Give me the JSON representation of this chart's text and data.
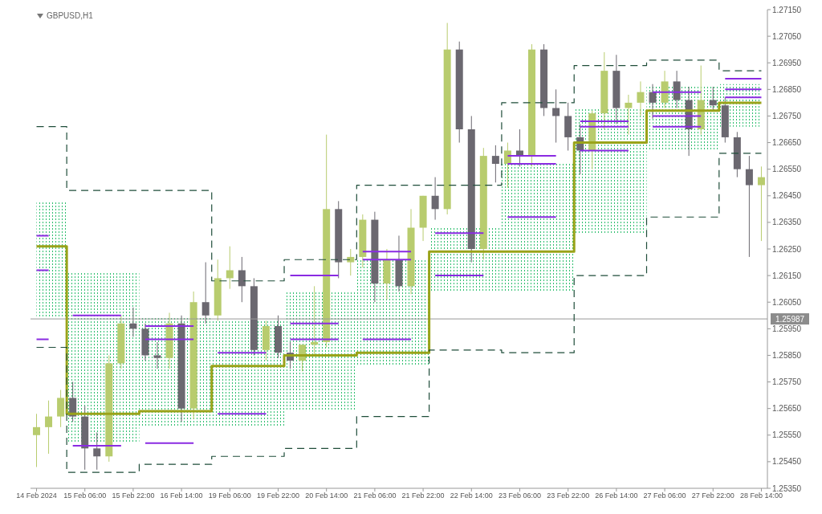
{
  "chart_data": {
    "type": "candlestick",
    "title": "GBPUSD,H1",
    "categories": [
      "14 Feb 2024",
      null,
      null,
      null,
      "15 Feb 06:00",
      null,
      null,
      null,
      "15 Feb 22:00",
      null,
      null,
      null,
      "16 Feb 14:00",
      null,
      null,
      null,
      "19 Feb 06:00",
      null,
      null,
      null,
      "19 Feb 22:00",
      null,
      null,
      null,
      "20 Feb 14:00",
      null,
      null,
      null,
      "21 Feb 06:00",
      null,
      null,
      null,
      "21 Feb 22:00",
      null,
      null,
      null,
      "22 Feb 14:00",
      null,
      null,
      null,
      "23 Feb 06:00",
      null,
      null,
      null,
      "23 Feb 22:00",
      null,
      null,
      null,
      "26 Feb 14:00",
      null,
      null,
      null,
      "27 Feb 06:00",
      null,
      null,
      null,
      "27 Feb 22:00",
      null,
      null,
      null,
      "28 Feb 14:00"
    ],
    "ohlc": [
      [
        1.2555,
        1.2563,
        1.2543,
        1.2558
      ],
      [
        1.2558,
        1.2568,
        1.2548,
        1.2562
      ],
      [
        1.2562,
        1.2572,
        1.2558,
        1.2569
      ],
      [
        1.2569,
        1.2575,
        1.256,
        1.2562
      ],
      [
        1.2562,
        1.2566,
        1.2542,
        1.255
      ],
      [
        1.255,
        1.2556,
        1.2542,
        1.2547
      ],
      [
        1.2547,
        1.2585,
        1.2545,
        1.2582
      ],
      [
        1.2582,
        1.26,
        1.258,
        1.2597
      ],
      [
        1.2597,
        1.2603,
        1.2592,
        1.2595
      ],
      [
        1.2595,
        1.2597,
        1.2583,
        1.2585
      ],
      [
        1.2585,
        1.259,
        1.258,
        1.2584
      ],
      [
        1.2584,
        1.2601,
        1.258,
        1.2597
      ],
      [
        1.2597,
        1.26,
        1.256,
        1.2565
      ],
      [
        1.2565,
        1.2609,
        1.2561,
        1.2605
      ],
      [
        1.2605,
        1.262,
        1.2597,
        1.26
      ],
      [
        1.26,
        1.2621,
        1.2598,
        1.2614
      ],
      [
        1.2614,
        1.2626,
        1.261,
        1.2617
      ],
      [
        1.2617,
        1.2622,
        1.2605,
        1.2611
      ],
      [
        1.2611,
        1.2614,
        1.2585,
        1.2587
      ],
      [
        1.2587,
        1.2598,
        1.2583,
        1.2596
      ],
      [
        1.2596,
        1.26,
        1.2584,
        1.2586
      ],
      [
        1.2586,
        1.259,
        1.258,
        1.2583
      ],
      [
        1.2583,
        1.2589,
        1.2579,
        1.2589
      ],
      [
        1.2589,
        1.2611,
        1.2585,
        1.259
      ],
      [
        1.259,
        1.2668,
        1.2588,
        1.264
      ],
      [
        1.264,
        1.2643,
        1.2614,
        1.262
      ],
      [
        1.262,
        1.2625,
        1.2615,
        1.2622
      ],
      [
        1.2622,
        1.2638,
        1.2618,
        1.2636
      ],
      [
        1.2636,
        1.2639,
        1.2605,
        1.2612
      ],
      [
        1.2612,
        1.2625,
        1.2606,
        1.2621
      ],
      [
        1.2621,
        1.263,
        1.2609,
        1.2611
      ],
      [
        1.2611,
        1.264,
        1.2608,
        1.2633
      ],
      [
        1.2633,
        1.2645,
        1.2628,
        1.2645
      ],
      [
        1.2645,
        1.2652,
        1.2636,
        1.264
      ],
      [
        1.264,
        1.271,
        1.2638,
        1.27
      ],
      [
        1.27,
        1.2703,
        1.2665,
        1.267
      ],
      [
        1.267,
        1.2675,
        1.262,
        1.2625
      ],
      [
        1.2625,
        1.2663,
        1.2621,
        1.266
      ],
      [
        1.266,
        1.2664,
        1.265,
        1.2657
      ],
      [
        1.2657,
        1.2665,
        1.2648,
        1.2662
      ],
      [
        1.2662,
        1.267,
        1.2656,
        1.266
      ],
      [
        1.266,
        1.2702,
        1.2656,
        1.27
      ],
      [
        1.27,
        1.2702,
        1.2675,
        1.2678
      ],
      [
        1.2678,
        1.2685,
        1.2665,
        1.2675
      ],
      [
        1.2675,
        1.268,
        1.2662,
        1.2667
      ],
      [
        1.2667,
        1.2672,
        1.2653,
        1.2662
      ],
      [
        1.2662,
        1.2677,
        1.2655,
        1.2676
      ],
      [
        1.2676,
        1.2699,
        1.267,
        1.2692
      ],
      [
        1.2692,
        1.2698,
        1.2672,
        1.2678
      ],
      [
        1.2678,
        1.2683,
        1.2668,
        1.268
      ],
      [
        1.268,
        1.2688,
        1.2675,
        1.2684
      ],
      [
        1.2684,
        1.2687,
        1.2674,
        1.268
      ],
      [
        1.268,
        1.2692,
        1.2678,
        1.2688
      ],
      [
        1.2688,
        1.2692,
        1.2678,
        1.2681
      ],
      [
        1.2681,
        1.2686,
        1.266,
        1.267
      ],
      [
        1.267,
        1.2694,
        1.2668,
        1.2681
      ],
      [
        1.2681,
        1.2686,
        1.2677,
        1.2679
      ],
      [
        1.2679,
        1.2682,
        1.2665,
        1.2667
      ],
      [
        1.2667,
        1.2669,
        1.2652,
        1.2655
      ],
      [
        1.2655,
        1.266,
        1.2622,
        1.2649
      ],
      [
        1.2649,
        1.2656,
        1.2628,
        1.2652
      ]
    ],
    "colors": [
      "#b8cc6e",
      "#b8cc6e",
      "#b8cc6e",
      "#6b6870",
      "#6b6870",
      "#6b6870",
      "#b8cc6e",
      "#b8cc6e",
      "#6b6870",
      "#6b6870",
      "#6b6870",
      "#b8cc6e",
      "#6b6870",
      "#b8cc6e",
      "#6b6870",
      "#b8cc6e",
      "#b8cc6e",
      "#6b6870",
      "#6b6870",
      "#b8cc6e",
      "#6b6870",
      "#6b6870",
      "#b8cc6e",
      "#b8cc6e",
      "#b8cc6e",
      "#6b6870",
      "#b8cc6e",
      "#b8cc6e",
      "#6b6870",
      "#b8cc6e",
      "#6b6870",
      "#b8cc6e",
      "#b8cc6e",
      "#6b6870",
      "#b8cc6e",
      "#6b6870",
      "#6b6870",
      "#b8cc6e",
      "#6b6870",
      "#b8cc6e",
      "#6b6870",
      "#b8cc6e",
      "#6b6870",
      "#6b6870",
      "#6b6870",
      "#6b6870",
      "#b8cc6e",
      "#b8cc6e",
      "#6b6870",
      "#b8cc6e",
      "#b8cc6e",
      "#6b6870",
      "#b8cc6e",
      "#6b6870",
      "#6b6870",
      "#b8cc6e",
      "#6b6870",
      "#6b6870",
      "#6b6870",
      "#6b6870",
      "#b8cc6e"
    ],
    "series": [
      {
        "type": "step",
        "color": "#9aa31a",
        "values": [
          1.2626,
          1.2626,
          1.2626,
          1.2563,
          1.2563,
          1.2563,
          1.2563,
          1.2563,
          1.2563,
          1.2564,
          1.2564,
          1.2564,
          1.2564,
          1.2564,
          1.2564,
          1.2581,
          1.2581,
          1.2581,
          1.2581,
          1.2581,
          1.2581,
          1.2585,
          1.2585,
          1.2585,
          1.2585,
          1.2585,
          1.2585,
          1.2586,
          1.2586,
          1.2586,
          1.2586,
          1.2586,
          1.2586,
          1.2624,
          1.2624,
          1.2624,
          1.2624,
          1.2624,
          1.2624,
          1.2624,
          1.2624,
          1.2624,
          1.2624,
          1.2624,
          1.2624,
          1.2665,
          1.2665,
          1.2665,
          1.2665,
          1.2665,
          1.2665,
          1.2677,
          1.2677,
          1.2677,
          1.2677,
          1.2677,
          1.2677,
          1.268,
          1.268,
          1.268,
          1.268
        ],
        "lower": [
          1.2599,
          1.2599,
          1.2599,
          1.2552,
          1.2552,
          1.2552,
          1.2552,
          1.2552,
          1.2552,
          1.2558,
          1.2558,
          1.2558,
          1.2558,
          1.2558,
          1.2558,
          1.2558,
          1.2558,
          1.2558,
          1.2558,
          1.2558,
          1.2558,
          1.2564,
          1.2564,
          1.2564,
          1.2564,
          1.2564,
          1.2564,
          1.2581,
          1.2581,
          1.2581,
          1.2581,
          1.2581,
          1.2581,
          1.2609,
          1.2609,
          1.2609,
          1.2609,
          1.2609,
          1.2609,
          1.2609,
          1.2609,
          1.2609,
          1.2609,
          1.2609,
          1.2609,
          1.2631,
          1.2631,
          1.2631,
          1.2631,
          1.2631,
          1.2631,
          1.2662,
          1.2662,
          1.2662,
          1.2662,
          1.2662,
          1.2662,
          1.2671,
          1.2671,
          1.2671,
          1.2671
        ],
        "upper": [
          1.2643,
          1.2643,
          1.2643,
          1.2616,
          1.2616,
          1.2616,
          1.2616,
          1.2616,
          1.2616,
          1.2599,
          1.2599,
          1.2599,
          1.2599,
          1.2599,
          1.2599,
          1.2598,
          1.2598,
          1.2598,
          1.2598,
          1.2598,
          1.2598,
          1.2609,
          1.2609,
          1.2609,
          1.2609,
          1.2609,
          1.2609,
          1.2621,
          1.2621,
          1.2621,
          1.2621,
          1.2621,
          1.2621,
          1.2633,
          1.2633,
          1.2633,
          1.2633,
          1.2633,
          1.2633,
          1.2657,
          1.2657,
          1.2657,
          1.2657,
          1.2657,
          1.2657,
          1.2678,
          1.2678,
          1.2678,
          1.2678,
          1.2678,
          1.2678,
          1.2686,
          1.2686,
          1.2686,
          1.2686,
          1.2686,
          1.2686,
          1.2687,
          1.2687,
          1.2687,
          1.2687
        ]
      },
      {
        "type": "step",
        "color": "#1f4d3a",
        "line_style": "dashed",
        "values": [
          1.2671,
          1.2671,
          1.2671,
          1.2647,
          1.2647,
          1.2647,
          1.2647,
          1.2647,
          1.2647,
          1.2647,
          1.2647,
          1.2647,
          1.2647,
          1.2647,
          1.2647,
          1.2613,
          1.2613,
          1.2613,
          1.2613,
          1.2613,
          1.2613,
          1.2621,
          1.2621,
          1.2621,
          1.2621,
          1.2621,
          1.2621,
          1.2649,
          1.2649,
          1.2649,
          1.2649,
          1.2649,
          1.2649,
          1.2649,
          1.2649,
          1.2649,
          1.2649,
          1.2649,
          1.2649,
          1.268,
          1.268,
          1.268,
          1.268,
          1.268,
          1.268,
          1.2694,
          1.2694,
          1.2694,
          1.2694,
          1.2694,
          1.2694,
          1.2696,
          1.2696,
          1.2696,
          1.2696,
          1.2696,
          1.2696,
          1.2692,
          1.2692,
          1.2692,
          1.2692
        ]
      },
      {
        "type": "step",
        "color": "#1f4d3a",
        "line_style": "dashed",
        "values": [
          1.2588,
          1.2588,
          1.2588,
          1.2541,
          1.2541,
          1.2541,
          1.2541,
          1.2541,
          1.2541,
          1.2544,
          1.2544,
          1.2544,
          1.2544,
          1.2544,
          1.2544,
          1.2547,
          1.2547,
          1.2547,
          1.2547,
          1.2547,
          1.2547,
          1.255,
          1.255,
          1.255,
          1.255,
          1.255,
          1.255,
          1.2562,
          1.2562,
          1.2562,
          1.2562,
          1.2562,
          1.2562,
          1.2587,
          1.2587,
          1.2587,
          1.2587,
          1.2587,
          1.2587,
          1.2586,
          1.2586,
          1.2586,
          1.2586,
          1.2586,
          1.2586,
          1.2615,
          1.2615,
          1.2615,
          1.2615,
          1.2615,
          1.2615,
          1.2637,
          1.2637,
          1.2637,
          1.2637,
          1.2637,
          1.2637,
          1.2661,
          1.2661,
          1.2661,
          1.2661
        ]
      },
      {
        "type": "line",
        "color": "#8a2be2",
        "values": [
          1.263,
          1.263,
          null,
          1.26,
          1.26,
          1.26,
          1.26,
          1.26,
          null,
          1.2596,
          1.2596,
          1.2596,
          1.2596,
          1.2596,
          null,
          1.2586,
          1.2586,
          1.2586,
          1.2586,
          1.2586,
          null,
          1.2615,
          1.2615,
          1.2615,
          1.2615,
          1.2615,
          null,
          1.2624,
          1.2624,
          1.2624,
          1.2624,
          1.2624,
          null,
          1.2631,
          1.2631,
          1.2631,
          1.2631,
          1.2631,
          null,
          1.266,
          1.266,
          1.266,
          1.266,
          1.266,
          null,
          1.2673,
          1.2673,
          1.2673,
          1.2673,
          1.2673,
          null,
          1.2684,
          1.2684,
          1.2684,
          1.2684,
          1.2684,
          null,
          1.2689,
          1.2689,
          1.2689,
          1.2689
        ]
      },
      {
        "type": "line",
        "color": "#8a2be2",
        "values": [
          1.2617,
          1.2617,
          null,
          null,
          null,
          null,
          null,
          null,
          null,
          1.2591,
          1.2591,
          1.2591,
          1.2591,
          1.2591,
          null,
          null,
          null,
          null,
          null,
          null,
          null,
          1.2597,
          1.2597,
          1.2597,
          1.2597,
          1.2597,
          null,
          1.2621,
          1.2621,
          1.2621,
          1.2621,
          1.2621,
          null,
          null,
          null,
          null,
          null,
          null,
          null,
          1.2657,
          1.2657,
          1.2657,
          1.2657,
          1.2657,
          null,
          1.2671,
          1.2671,
          1.2671,
          1.2671,
          1.2671,
          null,
          1.2675,
          1.2675,
          1.2675,
          1.2675,
          1.2675,
          null,
          1.2685,
          1.2685,
          1.2685,
          1.2685
        ]
      },
      {
        "type": "line",
        "color": "#8a2be2",
        "values": [
          1.2591,
          1.2591,
          null,
          1.2551,
          1.2551,
          1.2551,
          1.2551,
          1.2551,
          null,
          1.2552,
          1.2552,
          1.2552,
          1.2552,
          1.2552,
          null,
          1.2563,
          1.2563,
          1.2563,
          1.2563,
          1.2563,
          null,
          1.2591,
          1.2591,
          1.2591,
          1.2591,
          1.2591,
          null,
          1.2591,
          1.2591,
          1.2591,
          1.2591,
          1.2591,
          null,
          1.2615,
          1.2615,
          1.2615,
          1.2615,
          1.2615,
          null,
          1.2637,
          1.2637,
          1.2637,
          1.2637,
          1.2637,
          null,
          1.2662,
          1.2662,
          1.2662,
          1.2662,
          1.2662,
          null,
          1.2671,
          1.2671,
          1.2671,
          1.2671,
          1.2671,
          null,
          1.2682,
          1.2682,
          1.2682,
          1.2682
        ]
      }
    ],
    "ylim": [
      1.2535,
      1.2715
    ],
    "yticks": [
      {
        "value": 1.2535,
        "label": "1.25350"
      },
      {
        "value": 1.2545,
        "label": "1.25450"
      },
      {
        "value": 1.2555,
        "label": "1.25550"
      },
      {
        "value": 1.2565,
        "label": "1.25650"
      },
      {
        "value": 1.2575,
        "label": "1.25750"
      },
      {
        "value": 1.2585,
        "label": "1.25850"
      },
      {
        "value": 1.2595,
        "label": "1.25950"
      },
      {
        "value": 1.2605,
        "label": "1.26050"
      },
      {
        "value": 1.2615,
        "label": "1.26150"
      },
      {
        "value": 1.2625,
        "label": "1.26250"
      },
      {
        "value": 1.2635,
        "label": "1.26350"
      },
      {
        "value": 1.2645,
        "label": "1.26450"
      },
      {
        "value": 1.2655,
        "label": "1.26550"
      },
      {
        "value": 1.2665,
        "label": "1.26650"
      },
      {
        "value": 1.2675,
        "label": "1.26750"
      },
      {
        "value": 1.2685,
        "label": "1.26850"
      },
      {
        "value": 1.2695,
        "label": "1.26950"
      },
      {
        "value": 1.2705,
        "label": "1.27050"
      },
      {
        "value": 1.2715,
        "label": "1.27150"
      }
    ],
    "ref_lines": [
      {
        "axis": "y",
        "value": 1.25987,
        "label": "1.25987",
        "color": "#9a9a9a"
      }
    ]
  }
}
